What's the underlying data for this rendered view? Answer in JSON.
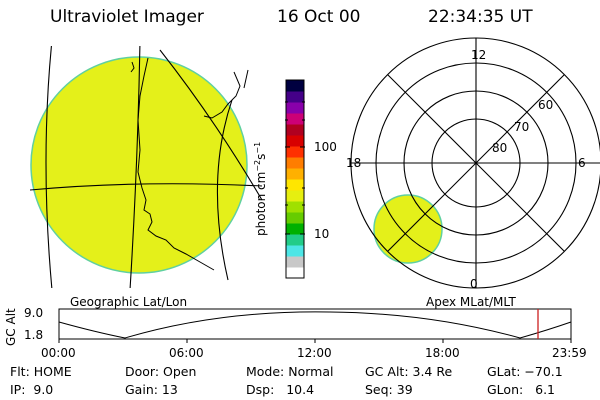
{
  "header": {
    "title": "Ultraviolet Imager",
    "date": "16 Oct 00",
    "time": "22:34:35 UT"
  },
  "colorbar": {
    "label_base": "photon cm",
    "exp1": "−2",
    "label_mid": "s",
    "exp2": "−1",
    "ticks": [
      "100",
      "10"
    ],
    "colors": [
      "#ffffff",
      "#c8c8c8",
      "#4de6e6",
      "#22cc88",
      "#00b000",
      "#66cc00",
      "#a0e000",
      "#e6ef10",
      "#ffe600",
      "#ffb000",
      "#ff7d00",
      "#ff3000",
      "#d80000",
      "#b00020",
      "#cc0077",
      "#8800aa",
      "#440088",
      "#000040"
    ]
  },
  "panels": {
    "left_caption": "Geographic Lat/Lon",
    "right_caption": "Apex MLat/MLT",
    "fill_color": "#e4f01a",
    "polar_labels": {
      "top": "12",
      "left": "18",
      "right": "6",
      "bottom": "0",
      "rings": [
        "60",
        "70",
        "80"
      ]
    }
  },
  "altitude": {
    "axis_title": "GC Alt",
    "y_top": "9.0",
    "y_bottom": "1.8",
    "x_ticks": [
      "00:00",
      "06:00",
      "12:00",
      "18:00",
      "23:59"
    ],
    "marker_color": "#cc2020"
  },
  "info": {
    "flt": "Flt: HOME",
    "door": "Door: Open",
    "mode": "Mode: Normal",
    "gcalt": "GC Alt: 3.4 Re",
    "glat": "GLat: −70.1",
    "ip": "IP:  9.0",
    "gain": "Gain: 13",
    "dsp": "Dsp:   10.4",
    "seq": "Seq: 39",
    "glon": "GLon:   6.1"
  }
}
